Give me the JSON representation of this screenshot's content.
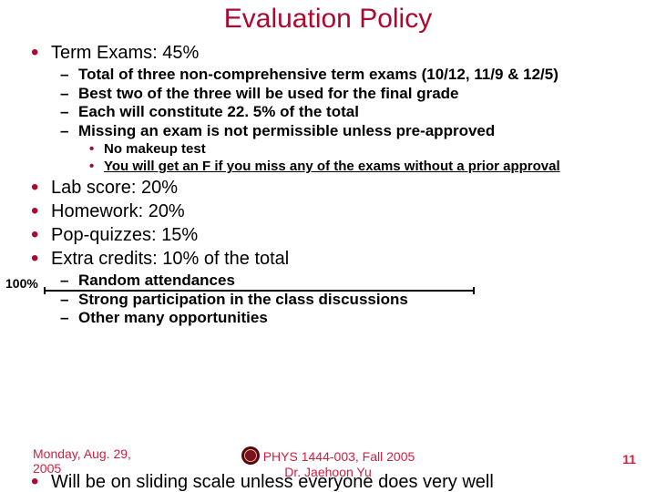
{
  "colors": {
    "title": "#aa0a2f",
    "footer_text": "#d02040",
    "bullet": "#aa0a2f",
    "background": "#ffffff",
    "text": "#000000"
  },
  "title": "Evaluation Policy",
  "hundred_label": "100%",
  "bullets": {
    "term_exams": "Term Exams: 45%",
    "term_sub": [
      "Total of three non-comprehensive term exams (10/12, 11/9 & 12/5)",
      "Best two of the three will be used for the final grade",
      "Each will constitute 22. 5% of the total",
      "Missing an exam is not permissible unless pre-approved"
    ],
    "term_sub_sub": {
      "a": "No makeup test",
      "b": "You will get an F if you miss any of the exams without a prior approval"
    },
    "lab": "Lab score: 20%",
    "hw": "Homework: 20%",
    "pop": "Pop-quizzes: 15%",
    "extra": "Extra credits: 10% of the total",
    "extra_sub": [
      "Random attendances",
      "Strong participation in the class discussions",
      "Other many opportunities"
    ],
    "sliding": "Will be on sliding scale unless everyone does very well"
  },
  "footer": {
    "date_l1": "Monday, Aug. 29,",
    "date_l2": "2005",
    "center_l1": "PHYS 1444-003, Fall 2005",
    "center_l2": "Dr. Jaehoon Yu",
    "page": "11"
  }
}
